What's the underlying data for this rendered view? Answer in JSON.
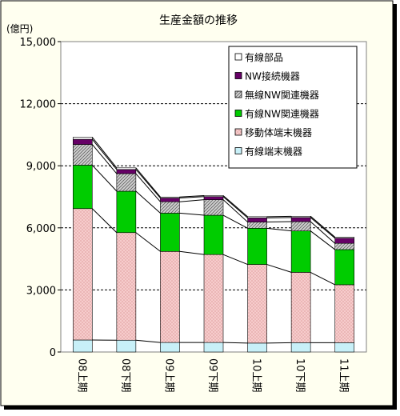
{
  "chart_data": {
    "type": "bar",
    "stacked": true,
    "title": "生産金額の推移",
    "y_unit_label": "(億円)",
    "categories": [
      "08上期",
      "08下期",
      "09上期",
      "09下期",
      "10上期",
      "10下期",
      "11上期"
    ],
    "ylim": [
      0,
      15000
    ],
    "y_ticks": [
      "0",
      "3,000",
      "6,000",
      "9,000",
      "12,000",
      "15,000"
    ],
    "y_tick_values": [
      0,
      3000,
      6000,
      9000,
      12000,
      15000
    ],
    "grid": true,
    "legend_position": "top-right",
    "series_lines_between_bars": true,
    "series": [
      {
        "name": "有線端末機器",
        "color": "#c8f0f8",
        "pattern": "solid",
        "values": [
          580,
          570,
          460,
          460,
          430,
          450,
          450
        ]
      },
      {
        "name": "移動体端末機器",
        "color": "#f6c8c8",
        "pattern": "dots",
        "values": [
          6350,
          5200,
          4400,
          4250,
          3800,
          3400,
          2800
        ]
      },
      {
        "name": "有線NW関連機器",
        "color": "#00cc00",
        "pattern": "solid",
        "values": [
          2100,
          2000,
          1850,
          1900,
          1750,
          2000,
          1700
        ]
      },
      {
        "name": "無線NW関連機器",
        "color": "#c0c0c0",
        "pattern": "hatch",
        "values": [
          1000,
          850,
          550,
          750,
          300,
          450,
          300
        ]
      },
      {
        "name": "NW接続機器",
        "color": "#660066",
        "pattern": "solid",
        "values": [
          250,
          200,
          180,
          150,
          200,
          200,
          250
        ]
      },
      {
        "name": "有線部品",
        "color": "#ffffff",
        "pattern": "solid",
        "values": [
          100,
          80,
          50,
          50,
          60,
          60,
          50
        ]
      }
    ]
  }
}
